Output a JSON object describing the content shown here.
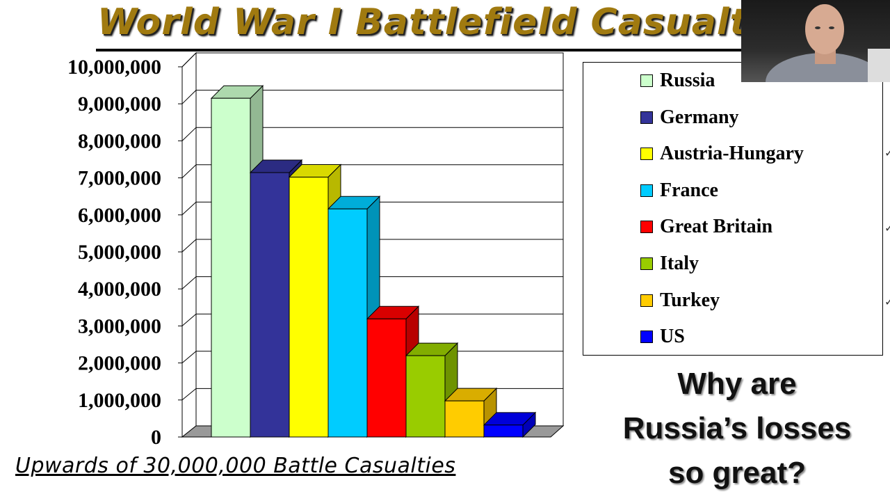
{
  "title": "World War I Battlefield Casualties",
  "caption": "Upwards of 30,000,000 Battle Casualties",
  "question": [
    "Why are",
    "Russia’s losses",
    "so great?"
  ],
  "chart_data": {
    "type": "bar",
    "title": "World War I Battlefield Casualties",
    "categories": [
      "Russia",
      "Germany",
      "Austria-Hungary",
      "France",
      "Great Britain",
      "Italy",
      "Turkey",
      "US"
    ],
    "values": [
      9150000,
      7142558,
      7020000,
      6160800,
      3190235,
      2197000,
      975000,
      323018
    ],
    "colors": [
      "#ccffcc",
      "#333399",
      "#ffff00",
      "#00ccff",
      "#ff0000",
      "#99cc00",
      "#ffcc00",
      "#0000ff"
    ],
    "ylim": [
      0,
      10000000
    ],
    "yticks": [
      "0",
      "1,000,000",
      "2,000,000",
      "3,000,000",
      "4,000,000",
      "5,000,000",
      "6,000,000",
      "7,000,000",
      "8,000,000",
      "9,000,000",
      "10,000,000"
    ],
    "grid": true,
    "legend_position": "right",
    "style": "3d-bar"
  },
  "webcam": {
    "desc_icon": "presenter-webcam-icon"
  }
}
